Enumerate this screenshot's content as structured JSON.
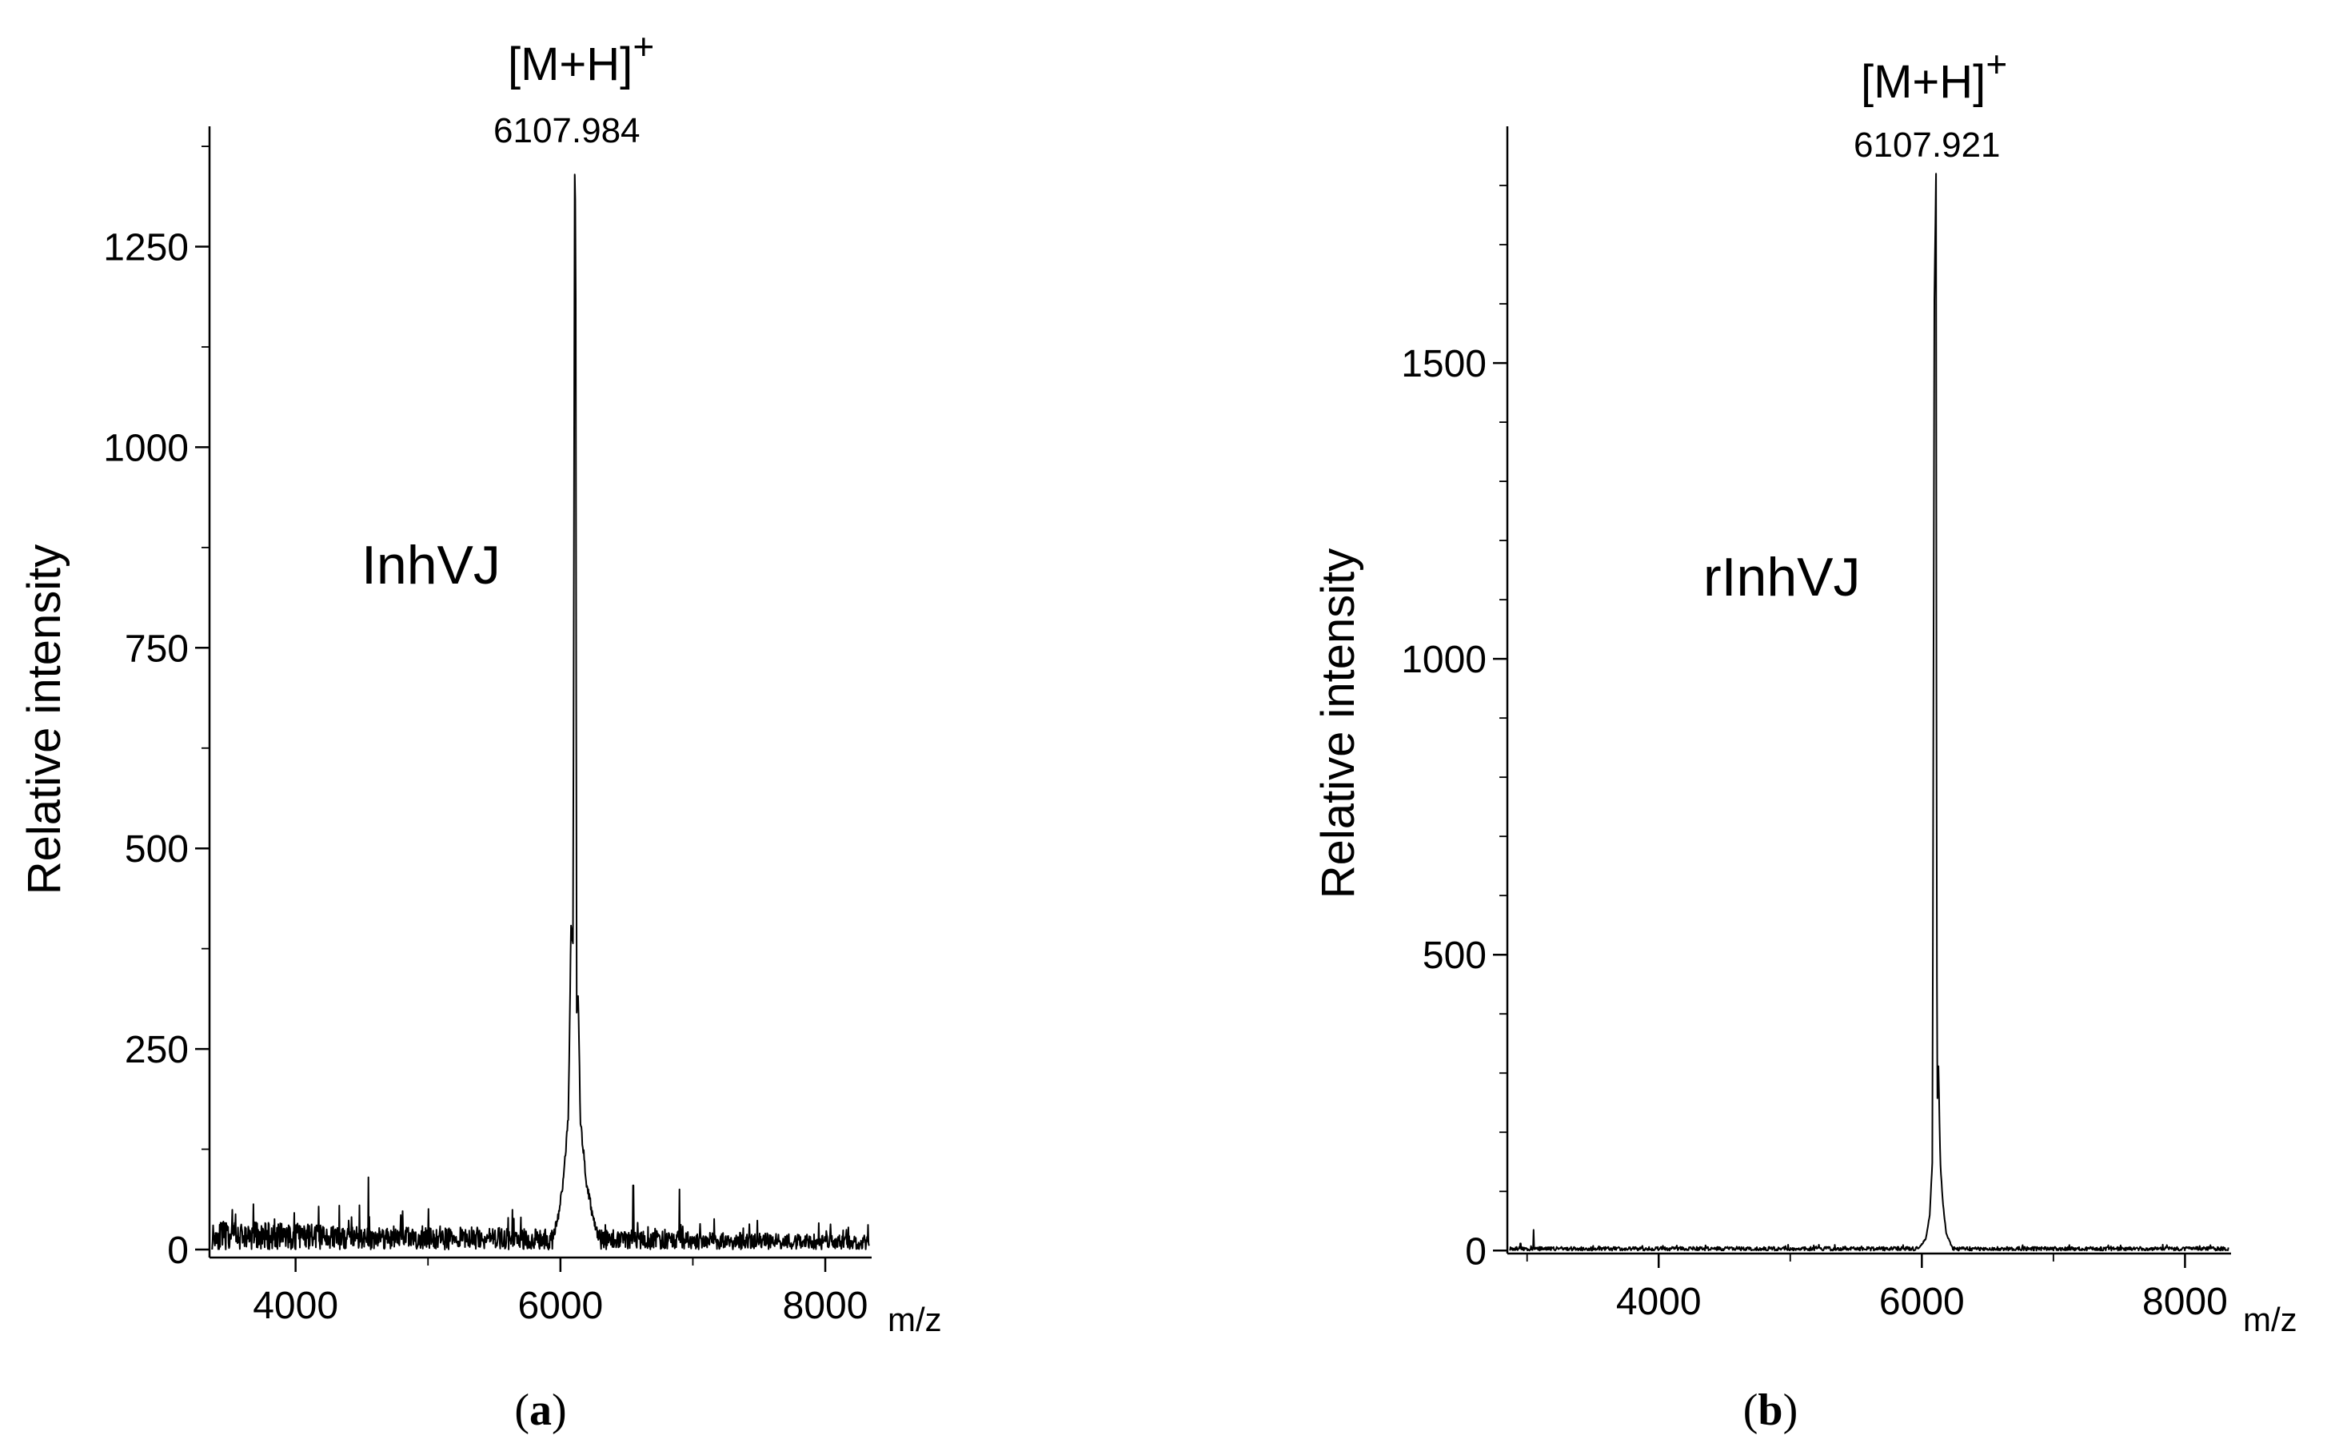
{
  "chart_data": [
    {
      "type": "line",
      "panel_label": "(a)",
      "panel_letter": "a",
      "sample_label": "InhVJ",
      "ylabel": "Relative intensity",
      "xlabel": "m/z",
      "xlim": [
        3350,
        8350
      ],
      "ylim": [
        -10,
        1400
      ],
      "xticks": [
        4000,
        6000,
        8000
      ],
      "xminor": [
        5000,
        7000
      ],
      "yticks": [
        0,
        250,
        500,
        750,
        1000,
        1250
      ],
      "yminor": [
        125,
        375,
        625,
        875,
        1125,
        1375
      ],
      "peak": {
        "ion_label": "[M+H]",
        "ion_charge": "+",
        "mz": 6107.984,
        "mz_label": "6107.984",
        "intensity": 1340
      },
      "series": [
        {
          "name": "InhVJ",
          "noise_level": 22,
          "noise_max": 65,
          "peak_profile": [
            [
              5940,
              15
            ],
            [
              5990,
              45
            ],
            [
              6030,
              100
            ],
            [
              6060,
              170
            ],
            [
              6080,
              400
            ],
            [
              6095,
              380
            ],
            [
              6107.984,
              1340
            ],
            [
              6115,
              1280
            ],
            [
              6122,
              300
            ],
            [
              6135,
              320
            ],
            [
              6150,
              160
            ],
            [
              6175,
              120
            ],
            [
              6200,
              80
            ],
            [
              6240,
              45
            ],
            [
              6280,
              20
            ]
          ],
          "spikes": [
            [
              4550,
              90
            ],
            [
              6550,
              80
            ],
            [
              6900,
              75
            ],
            [
              5700,
              40
            ]
          ]
        }
      ]
    },
    {
      "type": "line",
      "panel_label": "(b)",
      "panel_letter": "b",
      "sample_label": "rInhVJ",
      "ylabel": "Relative intensity",
      "xlabel": "m/z",
      "xlim": [
        2850,
        8350
      ],
      "ylim": [
        -5,
        1900
      ],
      "xticks": [
        4000,
        6000,
        8000
      ],
      "xminor": [
        3000,
        5000,
        7000
      ],
      "yticks": [
        0,
        500,
        1000,
        1500
      ],
      "yminor": [
        100,
        200,
        300,
        400,
        600,
        700,
        800,
        900,
        1100,
        1200,
        1300,
        1400,
        1600,
        1700,
        1800
      ],
      "peak": {
        "ion_label": "[M+H]",
        "ion_charge": "+",
        "mz": 6107.921,
        "mz_label": "6107.921",
        "intensity": 1820
      },
      "series": [
        {
          "name": "rInhVJ",
          "noise_level": 4,
          "noise_max": 10,
          "peak_profile": [
            [
              5980,
              5
            ],
            [
              6030,
              20
            ],
            [
              6060,
              60
            ],
            [
              6080,
              150
            ],
            [
              6095,
              1600
            ],
            [
              6107.921,
              1820
            ],
            [
              6112,
              650
            ],
            [
              6118,
              250
            ],
            [
              6125,
              330
            ],
            [
              6140,
              150
            ],
            [
              6160,
              80
            ],
            [
              6185,
              30
            ],
            [
              6230,
              5
            ]
          ],
          "spikes": [
            [
              3050,
              35
            ],
            [
              2950,
              12
            ]
          ]
        }
      ]
    }
  ]
}
